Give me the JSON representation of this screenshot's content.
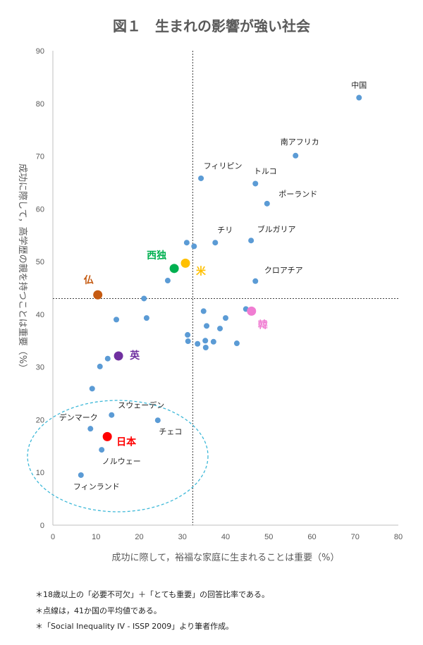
{
  "chart_data": {
    "type": "scatter",
    "title": "図１　生まれの影響が強い社会",
    "xlabel": "成功に際して，裕福な家庭に生まれることは重要（%）",
    "ylabel": "成功に際して，高学歴の親を持つことは重要（%）",
    "xlim": [
      0,
      80
    ],
    "ylim": [
      0,
      90
    ],
    "xticks": [
      0,
      10,
      20,
      30,
      40,
      50,
      60,
      70,
      80
    ],
    "yticks": [
      0,
      10,
      20,
      30,
      40,
      50,
      60,
      70,
      80,
      90
    ],
    "grid": false,
    "mean_lines": {
      "x": 32.4,
      "y": 43
    },
    "default_color": "#5b9bd5",
    "points": [
      {
        "x": 70.9,
        "y": 81.1,
        "label": "中国"
      },
      {
        "x": 56.2,
        "y": 70.1,
        "label": "南アフリカ"
      },
      {
        "x": 34.3,
        "y": 65.8,
        "label": "フィリピン"
      },
      {
        "x": 46.9,
        "y": 64.8,
        "label": "トルコ"
      },
      {
        "x": 49.6,
        "y": 61.0,
        "label": "ポーランド"
      },
      {
        "x": 37.6,
        "y": 53.6,
        "label": "チリ"
      },
      {
        "x": 45.9,
        "y": 54.0,
        "label": "ブルガリア"
      },
      {
        "x": 31.0,
        "y": 53.6
      },
      {
        "x": 32.7,
        "y": 52.9
      },
      {
        "x": 30.7,
        "y": 49.7,
        "label": "米",
        "color": "#ffc000",
        "highlight": true
      },
      {
        "x": 28.1,
        "y": 48.7,
        "label": "西独",
        "color": "#00b050",
        "highlight": true
      },
      {
        "x": 26.6,
        "y": 46.4
      },
      {
        "x": 46.9,
        "y": 46.3,
        "label": "クロアチア"
      },
      {
        "x": 10.4,
        "y": 43.7,
        "label": "仏",
        "color": "#c55a11",
        "highlight": true
      },
      {
        "x": 21.1,
        "y": 43.0
      },
      {
        "x": 34.9,
        "y": 40.6
      },
      {
        "x": 44.7,
        "y": 41.0
      },
      {
        "x": 46.0,
        "y": 40.6,
        "label": "韓",
        "color": "#f07dd2",
        "highlight": true
      },
      {
        "x": 40.0,
        "y": 39.3
      },
      {
        "x": 14.7,
        "y": 39.0
      },
      {
        "x": 21.7,
        "y": 39.3
      },
      {
        "x": 35.6,
        "y": 37.8
      },
      {
        "x": 38.7,
        "y": 37.3
      },
      {
        "x": 31.2,
        "y": 36.1
      },
      {
        "x": 31.3,
        "y": 34.9
      },
      {
        "x": 33.5,
        "y": 34.4
      },
      {
        "x": 35.3,
        "y": 35.0
      },
      {
        "x": 37.2,
        "y": 34.8
      },
      {
        "x": 42.6,
        "y": 34.5
      },
      {
        "x": 35.4,
        "y": 33.7
      },
      {
        "x": 15.2,
        "y": 32.1,
        "label": "英",
        "color": "#7030a0",
        "highlight": true
      },
      {
        "x": 12.7,
        "y": 31.6
      },
      {
        "x": 10.9,
        "y": 30.1
      },
      {
        "x": 9.1,
        "y": 25.9
      },
      {
        "x": 13.6,
        "y": 20.9,
        "label": "スウェーデン"
      },
      {
        "x": 24.3,
        "y": 19.9,
        "label": "チェコ"
      },
      {
        "x": 8.7,
        "y": 18.3,
        "label": "デンマーク"
      },
      {
        "x": 12.6,
        "y": 16.8,
        "label": "日本",
        "color": "#ff0000",
        "highlight": true
      },
      {
        "x": 11.3,
        "y": 14.3,
        "label": "ノルウェー"
      },
      {
        "x": 6.5,
        "y": 9.5,
        "label": "フィンランド"
      }
    ]
  },
  "notes": [
    "＊18歳以上の「必要不可欠」＋「とても重要」の回答比率である。",
    "＊点線は，41か国の平均値である。",
    "＊「Social Inequality IV - ISSP 2009」より筆者作成。"
  ]
}
